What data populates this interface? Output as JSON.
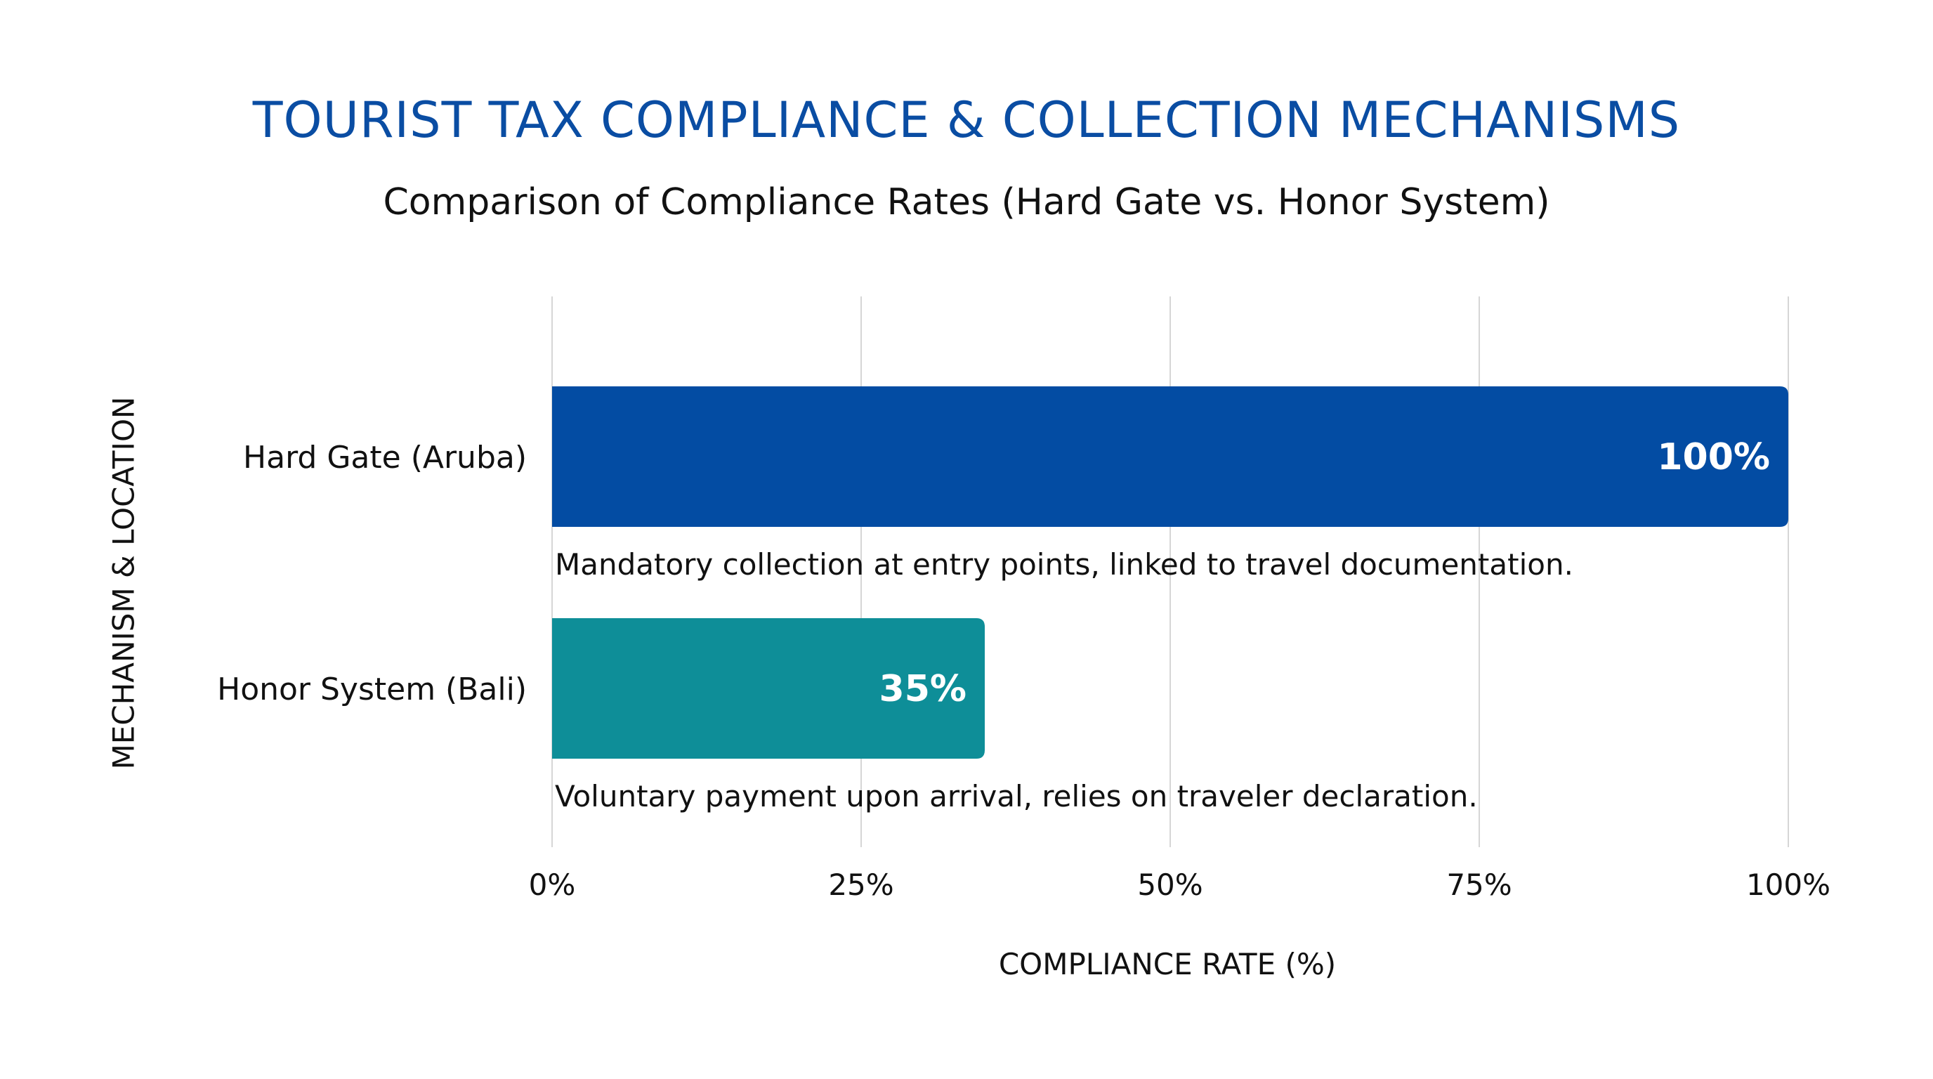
{
  "chart_data": {
    "type": "bar",
    "orientation": "horizontal",
    "title": "TOURIST TAX COMPLIANCE & COLLECTION MECHANISMS",
    "subtitle": "Comparison of Compliance Rates (Hard Gate vs. Honor System)",
    "xlabel": "COMPLIANCE RATE (%)",
    "ylabel": "MECHANISM & LOCATION",
    "xlim": [
      0,
      100
    ],
    "x_ticks": [
      "0%",
      "25%",
      "50%",
      "75%",
      "100%"
    ],
    "grid": "vertical",
    "categories": [
      "Hard Gate (Aruba)",
      "Honor System (Bali)"
    ],
    "values": [
      100,
      35
    ],
    "data_labels": [
      "100%",
      "35%"
    ],
    "annotations": [
      "Mandatory collection at entry points, linked to travel documentation.",
      "Voluntary payment upon arrival, relies on traveler declaration."
    ],
    "colors": [
      "#034ca3",
      "#0e8e98"
    ],
    "gridline_color": "#d6d6d6"
  }
}
